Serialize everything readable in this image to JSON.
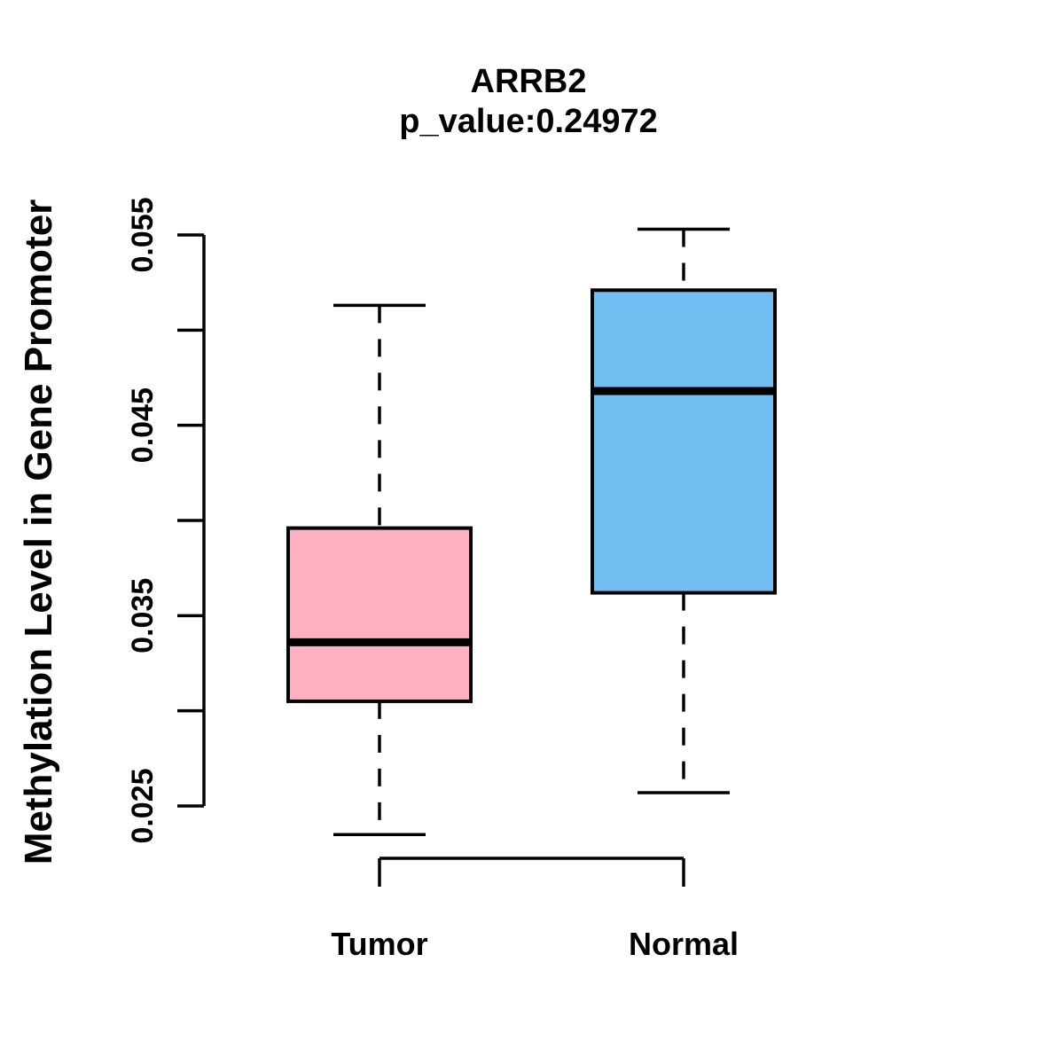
{
  "chart_data": {
    "type": "boxplot",
    "title": "ARRB2",
    "subtitle": "p_value:0.24972",
    "ylabel": "Methylation Level in Gene Promoter",
    "xlabel": "",
    "ylim": [
      0.025,
      0.055
    ],
    "grid": false,
    "legend": "none",
    "background_color": "#FFFFFF",
    "line_color": "#000000",
    "whisker_style": "dashed",
    "yticks": [
      {
        "value": 0.025,
        "label": "0.025"
      },
      {
        "value": 0.03,
        "label": ""
      },
      {
        "value": 0.035,
        "label": "0.035"
      },
      {
        "value": 0.04,
        "label": ""
      },
      {
        "value": 0.045,
        "label": "0.045"
      },
      {
        "value": 0.05,
        "label": ""
      },
      {
        "value": 0.055,
        "label": "0.055"
      }
    ],
    "categories": [
      "Tumor",
      "Normal"
    ],
    "series": [
      {
        "name": "Tumor",
        "box_color": "#FFB1C3",
        "whisker_low": 0.0235,
        "q1": 0.0305,
        "median": 0.0336,
        "q3": 0.0396,
        "whisker_high": 0.0513
      },
      {
        "name": "Normal",
        "box_color": "#72BDF2",
        "whisker_low": 0.0257,
        "q1": 0.0362,
        "median": 0.0468,
        "q3": 0.0521,
        "whisker_high": 0.0553
      }
    ]
  }
}
